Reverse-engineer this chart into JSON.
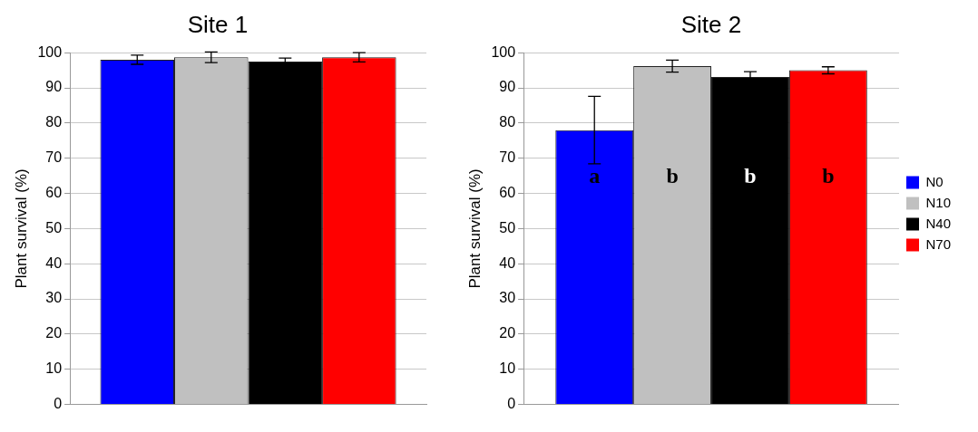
{
  "chart_data": [
    {
      "type": "bar",
      "title": "Site 1",
      "ylabel": "Plant survival (%)",
      "categories": [
        null
      ],
      "ylim": [
        0,
        100
      ],
      "yticks": [
        0,
        10,
        20,
        30,
        40,
        50,
        60,
        70,
        80,
        90,
        100
      ],
      "grid": "y",
      "legend": false,
      "series": [
        {
          "color": "#0000ff",
          "values": [
            98.0
          ],
          "errors": [
            1.3
          ]
        },
        {
          "color": "#c0c0c0",
          "values": [
            98.7
          ],
          "errors": [
            1.5
          ]
        },
        {
          "color": "#000000",
          "values": [
            97.5
          ],
          "errors": [
            1.0
          ]
        },
        {
          "color": "#ff0000",
          "values": [
            98.7
          ],
          "errors": [
            1.3
          ]
        }
      ]
    },
    {
      "type": "bar",
      "title": "Site 2",
      "ylabel": "Plant survival (%)",
      "categories": [
        null
      ],
      "ylim": [
        0,
        100
      ],
      "yticks": [
        0,
        10,
        20,
        30,
        40,
        50,
        60,
        70,
        80,
        90,
        100
      ],
      "grid": "y",
      "legend": "right",
      "annotations": [
        "a",
        "b",
        "b",
        "b"
      ],
      "series": [
        {
          "name": "N0",
          "color": "#0000ff",
          "values": [
            78.0
          ],
          "errors": [
            9.6
          ]
        },
        {
          "name": "N10",
          "color": "#c0c0c0",
          "values": [
            96.2
          ],
          "errors": [
            1.7
          ]
        },
        {
          "name": "N40",
          "color": "#000000",
          "values": [
            93.1
          ],
          "errors": [
            1.5
          ]
        },
        {
          "name": "N70",
          "color": "#ff0000",
          "values": [
            95.0
          ],
          "errors": [
            1.0
          ]
        }
      ]
    }
  ]
}
